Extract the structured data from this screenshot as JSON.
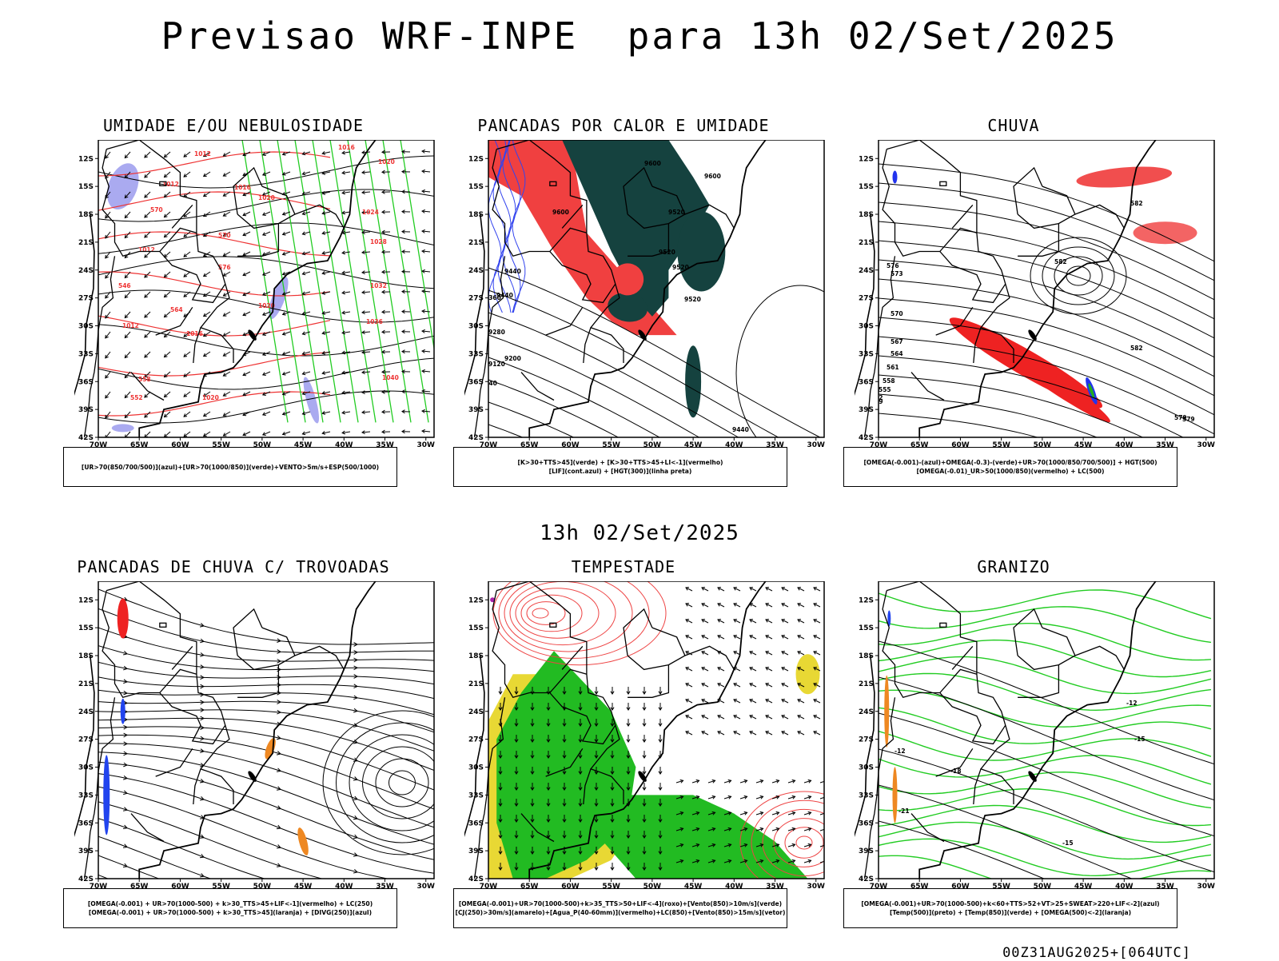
{
  "title": "Previsao WRF-INPE  para 13h 02/Set/2025",
  "middle_date": "13h 02/Set/2025",
  "footer": "00Z31AUG2025+[064UTC]",
  "axes": {
    "lat_labels": [
      "12S",
      "15S",
      "18S",
      "21S",
      "24S",
      "27S",
      "30S",
      "33S",
      "36S",
      "39S",
      "42S"
    ],
    "lon_labels": [
      "70W",
      "65W",
      "60W",
      "55W",
      "50W",
      "45W",
      "40W",
      "35W",
      "30W"
    ]
  },
  "panels": [
    {
      "title": "UMIDADE E/OU NEBULOSIDADE",
      "legend": [
        "[UR>70(850/700/500)](azul)+[UR>70(1000/850)](verde)+VENTO>5m/s+ESP(500/1000)"
      ],
      "labels": [
        "1012",
        "1012",
        "1016",
        "1016",
        "1020",
        "1020",
        "1024",
        "1028",
        "1032",
        "1036",
        "1040",
        "1020",
        "1020",
        "1016",
        "1012",
        "1012",
        "570",
        "570",
        "564",
        "558",
        "552",
        "546",
        "576"
      ],
      "colors": {
        "blue": "#aaaaf0",
        "green": "#22cc22",
        "red": "#ee3333"
      }
    },
    {
      "title": "PANCADAS POR CALOR E UMIDADE",
      "legend": [
        "[K>30+TTS>45](verde) + [K>30+TTS>45+LI<-1](vermelho)",
        "[LIF](cont.azul) + [HGT(300)](linha preta)"
      ],
      "labels": [
        "9600",
        "9600",
        "9600",
        "9520",
        "9520",
        "9520",
        "9520",
        "9440",
        "9440",
        "9360",
        "9280",
        "9200",
        "9120",
        "9040",
        "9440"
      ],
      "colors": {
        "dark": "#15423f",
        "red": "#f04040",
        "blue": "#3344ee"
      }
    },
    {
      "title": "CHUVA",
      "legend": [
        "[OMEGA(-0.001)-(azul)+OMEGA(-0.3)-(verde)+UR>70(1000/850/700/500)] + HGT(500)",
        "[OMEGA(-0.01)_UR>50(1000/850)(vermelho) + LC(500)"
      ],
      "labels": [
        "582",
        "582",
        "582",
        "579",
        "576",
        "573",
        "570",
        "567",
        "564",
        "561",
        "558",
        "555",
        "552",
        "549",
        "579"
      ],
      "colors": {
        "red": "#ee2222",
        "blue": "#2233ee",
        "green": "#22aa22"
      }
    },
    {
      "title": "PANCADAS DE CHUVA C/ TROVOADAS",
      "legend": [
        "[OMEGA(-0.001) + UR>70(1000-500) + k>30_TTS>45+LIF<-1](vermelho) + LC(250)",
        "[OMEGA(-0.001) + UR>70(1000-500) + k>30_TTS>45](laranja) + [DIVG(250)](azul)"
      ],
      "labels": [],
      "colors": {
        "red": "#ee2222",
        "orange": "#ee8822",
        "blue": "#2244ee"
      }
    },
    {
      "title": "TEMPESTADE",
      "legend": [
        "[OMEGA(-0.001)+UR>70(1000-500)+k>35_TTS>50+LIF<-4](roxo)+[Vento(850)>10m/s](verde)",
        "[CJ(250)>30m/s](amarelo)+[Agua_P(40-60mm)](vermelho)+LC(850)+[Vento(850)>15m/s](vetor)"
      ],
      "labels": [],
      "colors": {
        "green": "#22bb22",
        "yellow": "#e8d834",
        "red": "#ee4444",
        "purple": "#aa22aa"
      }
    },
    {
      "title": "GRANIZO",
      "legend": [
        "[OMEGA(-0.001)+UR>70(1000-500)+k<60+TTS>52+VT>25+SWEAT>220+LIF<-2](azul)",
        "[Temp(500)](preto) + [Temp(850)](verde) + [OMEGA(500)<-2](laranja)"
      ],
      "labels": [
        "-12",
        "-12",
        "-15",
        "-15",
        "-18",
        "-21"
      ],
      "colors": {
        "green": "#22cc22",
        "orange": "#ee8822",
        "blue": "#2244ee"
      }
    }
  ]
}
